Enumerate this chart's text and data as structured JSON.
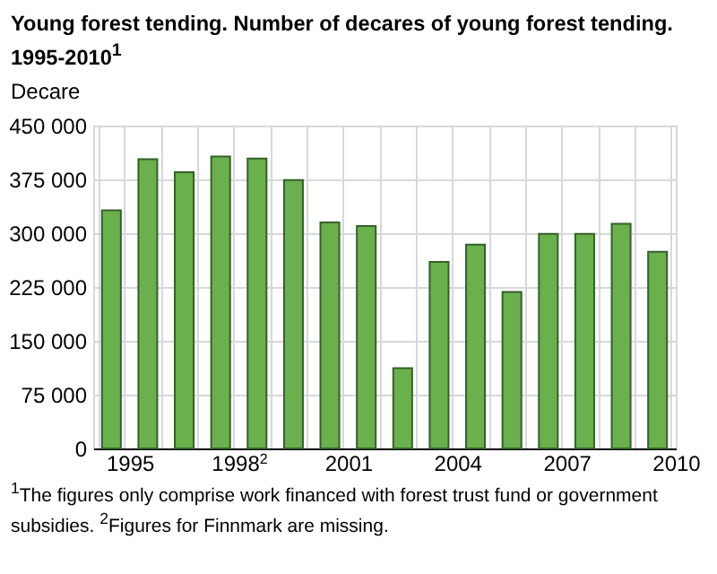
{
  "chart_data": {
    "type": "bar",
    "title": "Young forest tending. Number of decares of young forest  tending. 1995-2010$^{1}$",
    "ylabel": "Decare",
    "categories": [
      "1995",
      null,
      null,
      "1998$^{2}$",
      null,
      null,
      "2001",
      null,
      null,
      "2004",
      null,
      null,
      "2007",
      null,
      null,
      "2010"
    ],
    "values": [
      332000,
      403000,
      385000,
      407000,
      404000,
      374000,
      315000,
      310000,
      112000,
      260000,
      284000,
      218000,
      299000,
      299000,
      313000,
      274000
    ],
    "color": "#6ab04c",
    "ylim": [
      0,
      450000
    ],
    "yticks": [
      {
        "value": 0,
        "label": "0"
      },
      {
        "value": 75000,
        "label": "75 000"
      },
      {
        "value": 150000,
        "label": "150 000"
      },
      {
        "value": 225000,
        "label": "225 000"
      },
      {
        "value": 300000,
        "label": "300 000"
      },
      {
        "value": 375000,
        "label": "375 000"
      },
      {
        "value": 450000,
        "label": "450 000"
      }
    ],
    "grid": true,
    "annotations": [
      "$^{1}$The figures only comprise work financed with forest trust fund or government subsidies. $^{2}$Figures for Finnmark are missing."
    ]
  }
}
